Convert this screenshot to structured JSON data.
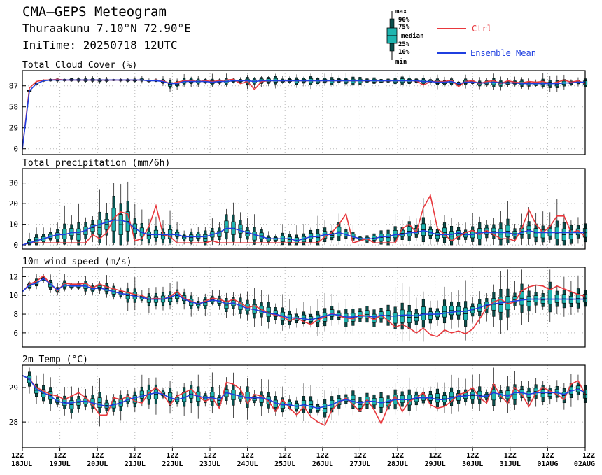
{
  "header": {
    "title": "CMA—GEPS Meteogram",
    "station": "Thuraakunu 7.10°N 72.90°E",
    "init_time": "IniTime: 20250718 12UTC"
  },
  "legend": {
    "box_labels": [
      "max",
      "90%",
      "75%",
      "median",
      "25%",
      "10%",
      "min"
    ],
    "ctrl_label": "Ctrl",
    "mean_label": "Ensemble Mean",
    "ctrl_color": "#e8383d",
    "mean_color": "#1f3fe0",
    "box_color": "#1fb5b0"
  },
  "x_labels": [
    {
      "time": "12Z",
      "date": "18JUL"
    },
    {
      "time": "12Z",
      "date": "19JUL"
    },
    {
      "time": "12Z",
      "date": "20JUL"
    },
    {
      "time": "12Z",
      "date": "21JUL"
    },
    {
      "time": "12Z",
      "date": "22JUL"
    },
    {
      "time": "12Z",
      "date": "23JUL"
    },
    {
      "time": "12Z",
      "date": "24JUL"
    },
    {
      "time": "12Z",
      "date": "25JUL"
    },
    {
      "time": "12Z",
      "date": "26JUL"
    },
    {
      "time": "12Z",
      "date": "27JUL"
    },
    {
      "time": "12Z",
      "date": "28JUL"
    },
    {
      "time": "12Z",
      "date": "29JUL"
    },
    {
      "time": "12Z",
      "date": "30JUL"
    },
    {
      "time": "12Z",
      "date": "31JUL"
    },
    {
      "time": "12Z",
      "date": "01AUG"
    },
    {
      "time": "12Z",
      "date": "02AUG"
    }
  ],
  "chart_data": [
    {
      "type": "box",
      "title": "Total Cloud Cover (%)",
      "yticks": [
        0,
        29,
        58,
        87
      ],
      "ylim": [
        -8,
        108
      ],
      "ctrl": [
        0,
        84,
        93,
        95,
        95,
        96,
        95,
        95,
        95,
        95,
        95,
        95,
        95,
        95,
        95,
        95,
        95,
        95,
        94,
        95,
        94,
        90,
        92,
        94,
        94,
        93,
        94,
        93,
        94,
        95,
        96,
        90,
        93,
        82,
        93,
        94,
        94,
        94,
        94,
        94,
        94,
        94,
        94,
        94,
        94,
        94,
        94,
        94,
        94,
        94,
        94,
        94,
        94,
        94,
        94,
        94,
        94,
        88,
        93,
        93,
        93,
        95,
        86,
        93,
        94,
        90,
        93,
        94,
        90,
        94,
        92,
        91,
        93,
        92,
        93,
        90,
        92,
        95,
        92,
        94,
        90
      ],
      "mean": [
        0,
        80,
        90,
        94,
        95,
        95,
        95,
        95,
        95,
        95,
        95,
        95,
        95,
        95,
        95,
        95,
        95,
        95,
        94,
        94,
        93,
        90,
        90,
        93,
        93,
        93,
        93,
        92,
        93,
        93,
        94,
        94,
        94,
        93,
        94,
        94,
        94,
        94,
        94,
        94,
        94,
        94,
        94,
        94,
        94,
        94,
        94,
        94,
        94,
        94,
        94,
        94,
        94,
        94,
        94,
        94,
        94,
        93,
        93,
        92,
        92,
        93,
        90,
        92,
        92,
        91,
        91,
        92,
        91,
        91,
        91,
        90,
        90,
        90,
        90,
        90,
        90,
        91,
        91,
        92,
        92
      ]
    },
    {
      "type": "box",
      "title": "Total precipitation (mm/6h)",
      "yticks": [
        0,
        10,
        20,
        30
      ],
      "ylim": [
        -2,
        37
      ],
      "ctrl": [
        0,
        1,
        1,
        1,
        1,
        1,
        1,
        1,
        1,
        1,
        5,
        3,
        6,
        13,
        16,
        15,
        2,
        3,
        9,
        19,
        5,
        4,
        1,
        1,
        1,
        1,
        1,
        2,
        1,
        1,
        1,
        1,
        1,
        1,
        1,
        1,
        1,
        1,
        1,
        1,
        1,
        1,
        1,
        4,
        6,
        10,
        15,
        1,
        2,
        3,
        1,
        1,
        1,
        1,
        8,
        10,
        6,
        18,
        24,
        8,
        5,
        2,
        4,
        6,
        7,
        5,
        7,
        5,
        3,
        3,
        2,
        8,
        17,
        10,
        6,
        9,
        14,
        14,
        6,
        7,
        4
      ],
      "mean": [
        0,
        1,
        2,
        3,
        4,
        5,
        5,
        6,
        6,
        7,
        9,
        10,
        11,
        12,
        12,
        11,
        8,
        6,
        5,
        5,
        5,
        5,
        5,
        4,
        4,
        4,
        4,
        5,
        6,
        8,
        8,
        7,
        6,
        5,
        4,
        3,
        3,
        3,
        3,
        2,
        3,
        4,
        4,
        5,
        5,
        6,
        5,
        4,
        3,
        3,
        3,
        4,
        4,
        5,
        5,
        6,
        6,
        7,
        6,
        5,
        5,
        5,
        6,
        5,
        5,
        6,
        6,
        6,
        6,
        6,
        5,
        6,
        7,
        6,
        6,
        6,
        6,
        6,
        6,
        6,
        6
      ]
    },
    {
      "type": "box",
      "title": "10m wind speed (m/s)",
      "yticks": [
        6,
        8,
        10,
        12
      ],
      "ylim": [
        4.5,
        13
      ],
      "ctrl": [
        10.4,
        11.2,
        11.5,
        12.1,
        11.2,
        10.5,
        11.3,
        11.2,
        11.2,
        11.3,
        10.8,
        11.2,
        10.9,
        10.7,
        10.5,
        10.3,
        10.1,
        10.0,
        9.6,
        9.7,
        9.6,
        9.9,
        10.4,
        9.7,
        9.4,
        9.1,
        9.4,
        9.7,
        9.6,
        9.3,
        9.6,
        9.2,
        8.7,
        8.9,
        8.5,
        8.1,
        7.9,
        7.7,
        7.3,
        7.6,
        7.2,
        6.9,
        7.4,
        7.7,
        8.1,
        7.8,
        7.6,
        7.5,
        7.9,
        7.8,
        7.4,
        7.9,
        7.3,
        6.6,
        6.9,
        6.5,
        6.0,
        6.5,
        5.8,
        5.6,
        6.3,
        6.0,
        6.2,
        5.9,
        6.4,
        7.5,
        8.7,
        9.3,
        9.6,
        9.1,
        9.3,
        10.5,
        10.9,
        11.1,
        11.0,
        10.6,
        11.0,
        10.7,
        10.4,
        10.1,
        9.9
      ],
      "mean": [
        10.4,
        11.1,
        11.3,
        11.8,
        11.2,
        10.6,
        11.1,
        11.0,
        11.0,
        11.0,
        10.7,
        10.8,
        10.6,
        10.4,
        10.2,
        10.1,
        9.9,
        9.8,
        9.6,
        9.6,
        9.6,
        9.8,
        10.1,
        9.6,
        9.3,
        9.1,
        9.3,
        9.5,
        9.4,
        9.1,
        9.2,
        8.9,
        8.6,
        8.5,
        8.3,
        8.1,
        8.0,
        7.8,
        7.6,
        7.6,
        7.5,
        7.4,
        7.6,
        7.8,
        8.0,
        7.9,
        7.7,
        7.7,
        7.8,
        7.8,
        7.7,
        7.9,
        7.8,
        7.8,
        7.9,
        7.9,
        7.8,
        8.0,
        8.0,
        8.0,
        8.1,
        8.2,
        8.3,
        8.3,
        8.5,
        8.7,
        9.0,
        9.1,
        9.2,
        9.3,
        9.4,
        9.5,
        9.6,
        9.6,
        9.6,
        9.6,
        9.6,
        9.6,
        9.6,
        9.6,
        9.6
      ]
    },
    {
      "type": "box",
      "title": "2m Temp (°C)",
      "yticks": [
        28,
        29
      ],
      "ylim": [
        27.25,
        29.65
      ],
      "ctrl": [
        29.35,
        29.25,
        29.0,
        28.9,
        28.8,
        28.75,
        28.65,
        28.75,
        28.85,
        28.7,
        28.5,
        28.2,
        28.2,
        28.7,
        28.65,
        28.75,
        28.6,
        28.55,
        28.85,
        29.0,
        28.8,
        28.5,
        28.75,
        28.85,
        28.95,
        28.75,
        28.6,
        28.7,
        28.4,
        29.15,
        29.1,
        28.95,
        28.55,
        28.8,
        28.75,
        28.6,
        28.3,
        28.65,
        28.4,
        28.2,
        28.45,
        28.15,
        28.0,
        27.9,
        28.35,
        28.55,
        28.7,
        28.5,
        28.3,
        28.65,
        28.35,
        27.95,
        28.45,
        28.75,
        28.3,
        28.6,
        28.7,
        28.85,
        28.5,
        28.4,
        28.45,
        28.6,
        28.8,
        28.85,
        29.0,
        28.7,
        28.55,
        29.1,
        28.75,
        28.55,
        29.0,
        28.8,
        28.45,
        28.85,
        29.0,
        28.9,
        28.8,
        28.65,
        29.1,
        29.2,
        28.8
      ],
      "mean": [
        29.35,
        29.25,
        28.95,
        28.85,
        28.75,
        28.6,
        28.55,
        28.55,
        28.6,
        28.6,
        28.55,
        28.5,
        28.45,
        28.5,
        28.55,
        28.65,
        28.7,
        28.75,
        28.8,
        28.85,
        28.8,
        28.7,
        28.65,
        28.7,
        28.8,
        28.75,
        28.7,
        28.7,
        28.65,
        28.85,
        28.8,
        28.75,
        28.7,
        28.7,
        28.7,
        28.65,
        28.55,
        28.5,
        28.5,
        28.45,
        28.5,
        28.45,
        28.4,
        28.45,
        28.5,
        28.6,
        28.65,
        28.6,
        28.55,
        28.6,
        28.6,
        28.55,
        28.6,
        28.65,
        28.65,
        28.65,
        28.7,
        28.7,
        28.7,
        28.65,
        28.65,
        28.7,
        28.75,
        28.75,
        28.8,
        28.75,
        28.75,
        28.85,
        28.8,
        28.75,
        28.85,
        28.85,
        28.8,
        28.85,
        28.85,
        28.85,
        28.85,
        28.8,
        28.9,
        28.95,
        28.85
      ]
    }
  ]
}
